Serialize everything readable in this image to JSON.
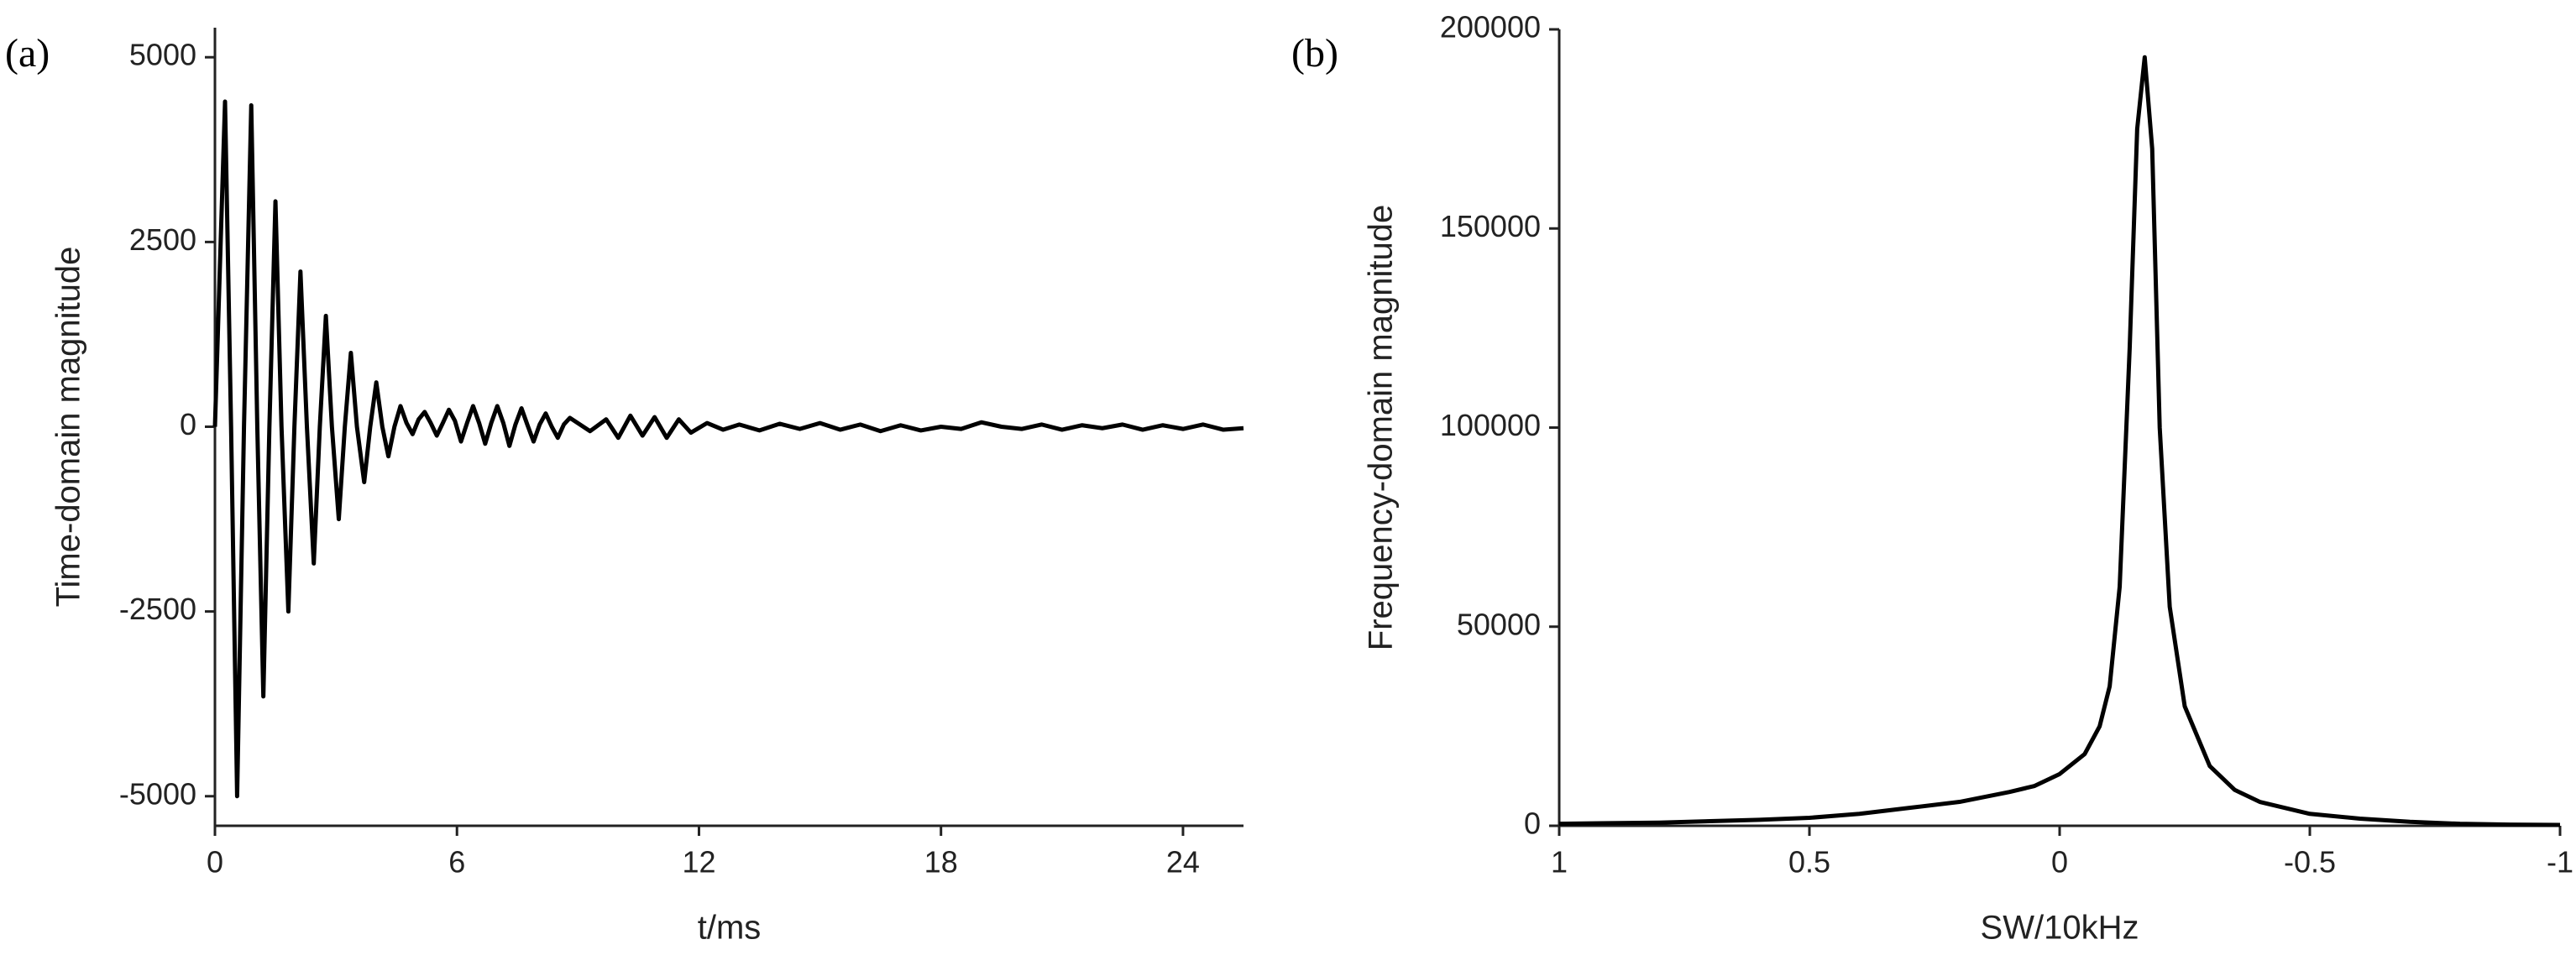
{
  "chart_data": [
    {
      "type": "line",
      "panel_label": "(a)",
      "x_label": "t/ms",
      "y_label": "Time-domain magnitude",
      "color": "#000000",
      "xlim": [
        0,
        25.5
      ],
      "xticks": [
        0,
        6,
        12,
        18,
        24
      ],
      "ylim": [
        -5400,
        5400
      ],
      "yticks": [
        -5000,
        -2500,
        0,
        2500,
        5000
      ],
      "x": [
        0,
        0.25,
        0.4,
        0.55,
        0.72,
        0.9,
        1.05,
        1.2,
        1.35,
        1.5,
        1.65,
        1.82,
        1.97,
        2.12,
        2.28,
        2.45,
        2.6,
        2.75,
        2.9,
        3.07,
        3.22,
        3.37,
        3.52,
        3.7,
        3.85,
        4.0,
        4.15,
        4.3,
        4.45,
        4.6,
        4.75,
        4.9,
        5.05,
        5.2,
        5.35,
        5.5,
        5.65,
        5.8,
        5.95,
        6.1,
        6.25,
        6.4,
        6.55,
        6.7,
        6.85,
        7.0,
        7.15,
        7.3,
        7.45,
        7.6,
        7.75,
        7.9,
        8.05,
        8.2,
        8.35,
        8.5,
        8.65,
        8.8,
        9.3,
        9.7,
        10.0,
        10.3,
        10.6,
        10.9,
        11.2,
        11.5,
        11.8,
        12.2,
        12.6,
        13,
        13.5,
        14,
        14.5,
        15,
        15.5,
        16,
        16.5,
        17,
        17.5,
        18,
        18.5,
        19,
        19.5,
        20,
        20.5,
        21,
        21.5,
        22,
        22.5,
        23,
        23.5,
        24,
        24.5,
        25,
        25.5
      ],
      "values": [
        0,
        4400,
        0,
        -5000,
        0,
        4350,
        0,
        -3650,
        0,
        3050,
        0,
        -2500,
        0,
        2100,
        0,
        -1850,
        0,
        1500,
        0,
        -1250,
        0,
        1000,
        0,
        -750,
        0,
        600,
        0,
        -400,
        0,
        280,
        50,
        -100,
        100,
        200,
        50,
        -120,
        50,
        230,
        80,
        -200,
        50,
        280,
        50,
        -230,
        50,
        280,
        50,
        -260,
        30,
        250,
        20,
        -200,
        30,
        180,
        0,
        -150,
        30,
        120,
        -60,
        100,
        -150,
        150,
        -120,
        130,
        -150,
        100,
        -80,
        50,
        -40,
        30,
        -50,
        40,
        -30,
        50,
        -40,
        30,
        -60,
        20,
        -50,
        0,
        -30,
        60,
        0,
        -30,
        30,
        -40,
        20,
        -20,
        30,
        -40,
        20,
        -30,
        30,
        -40,
        -20
      ]
    },
    {
      "type": "line",
      "panel_label": "(b)",
      "x_label": "SW/10kHz",
      "y_label": "Frequency-domain magnitude",
      "color": "#000000",
      "xlim": [
        1,
        -1
      ],
      "xticks": [
        1,
        0.5,
        0,
        -0.5,
        -1
      ],
      "ylim": [
        0,
        200000
      ],
      "yticks": [
        0,
        50000,
        100000,
        150000,
        200000
      ],
      "x": [
        1,
        0.8,
        0.6,
        0.5,
        0.4,
        0.3,
        0.2,
        0.1,
        0.05,
        0,
        -0.05,
        -0.08,
        -0.1,
        -0.12,
        -0.14,
        -0.155,
        -0.17,
        -0.185,
        -0.2,
        -0.22,
        -0.25,
        -0.3,
        -0.35,
        -0.4,
        -0.5,
        -0.6,
        -0.7,
        -0.8,
        -0.9,
        -1
      ],
      "values": [
        500,
        800,
        1500,
        2000,
        3000,
        4500,
        6000,
        8500,
        10000,
        13000,
        18000,
        25000,
        35000,
        60000,
        120000,
        175000,
        193000,
        170000,
        100000,
        55000,
        30000,
        15000,
        9000,
        6000,
        3000,
        1800,
        1000,
        500,
        300,
        200
      ]
    }
  ]
}
